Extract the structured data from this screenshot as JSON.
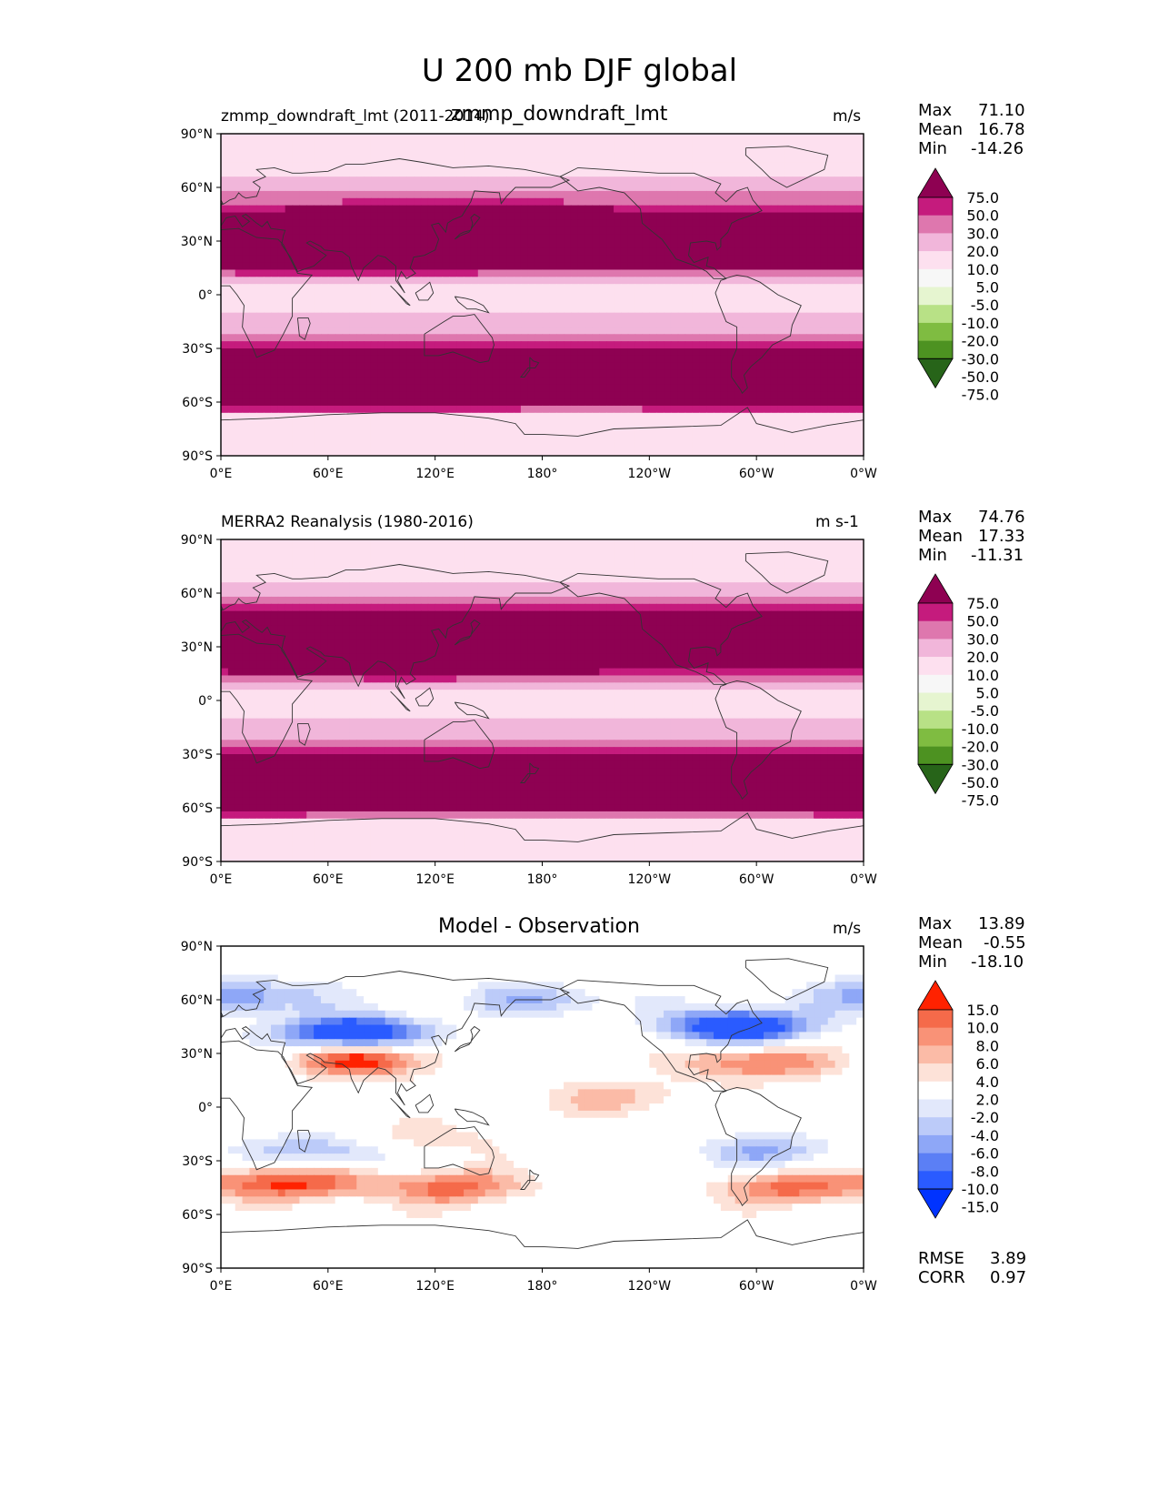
{
  "figure": {
    "title": "U 200 mb DJF global"
  },
  "colors": {
    "field": [
      "#276419",
      "#4d9221",
      "#7fbc41",
      "#b8e186",
      "#e6f5d0",
      "#f7f7f7",
      "#fde0ef",
      "#f1b6da",
      "#de77ae",
      "#c51b7d",
      "#8e0152"
    ],
    "diff": [
      "#0033ff",
      "#2a5bff",
      "#5b7ff5",
      "#8ea7f7",
      "#bccbf9",
      "#e2e8fb",
      "#ffffff",
      "#fde2d8",
      "#fbbba7",
      "#f99277",
      "#f56a4a",
      "#ff2200"
    ],
    "coast": "#333333"
  },
  "chart_data": [
    {
      "type": "heatmap",
      "name": "test",
      "title_left": "zmmp_downdraft_lmt (2011-2014)",
      "title_center": "zmmp_downdraft_lmt",
      "units": "m/s",
      "x_ticks": [
        "0°E",
        "60°E",
        "120°E",
        "180°",
        "120°W",
        "60°W",
        "0°W"
      ],
      "y_ticks": [
        "90°N",
        "60°N",
        "30°N",
        "0°",
        "30°S",
        "60°S",
        "90°S"
      ],
      "stats": {
        "max_label": "Max",
        "max": "71.10",
        "mean_label": "Mean",
        "mean": "16.78",
        "min_label": "Min",
        "min": "-14.26"
      },
      "colorbar_levels": [
        "75.0",
        "50.0",
        "30.0",
        "20.0",
        "10.0",
        "5.0",
        "-5.0",
        "-10.0",
        "-20.0",
        "-30.0",
        "-50.0",
        "-75.0"
      ],
      "jets": [
        [
          33,
          140,
          65,
          0.55
        ],
        [
          30,
          60,
          55,
          0.35
        ],
        [
          30,
          295,
          45,
          0.35
        ],
        [
          -45,
          40,
          50,
          0.3
        ],
        [
          -45,
          300,
          44,
          0.25
        ],
        [
          -45,
          160,
          38,
          0.25
        ]
      ]
    },
    {
      "type": "heatmap",
      "name": "reference",
      "title_left": "MERRA2 Reanalysis (1980-2016)",
      "units": "m s-1",
      "x_ticks": [
        "0°E",
        "60°E",
        "120°E",
        "180°",
        "120°W",
        "60°W",
        "0°W"
      ],
      "y_ticks": [
        "90°N",
        "60°N",
        "30°N",
        "0°",
        "30°S",
        "60°S",
        "90°S"
      ],
      "stats": {
        "max_label": "Max",
        "max": "74.76",
        "mean_label": "Mean",
        "mean": "17.33",
        "min_label": "Min",
        "min": "-11.31"
      },
      "colorbar_levels": [
        "75.0",
        "50.0",
        "30.0",
        "20.0",
        "10.0",
        "5.0",
        "-5.0",
        "-10.0",
        "-20.0",
        "-30.0",
        "-50.0",
        "-75.0"
      ],
      "jets": [
        [
          32,
          140,
          68,
          0.55
        ],
        [
          30,
          60,
          50,
          0.35
        ],
        [
          35,
          290,
          48,
          0.35
        ],
        [
          -45,
          40,
          42,
          0.3
        ],
        [
          -45,
          310,
          40,
          0.3
        ],
        [
          -45,
          160,
          32,
          0.25
        ]
      ]
    },
    {
      "type": "heatmap",
      "name": "difference",
      "title_center": "Model - Observation",
      "units": "m/s",
      "x_ticks": [
        "0°E",
        "60°E",
        "120°E",
        "180°",
        "120°W",
        "60°W",
        "0°W"
      ],
      "y_ticks": [
        "90°N",
        "60°N",
        "30°N",
        "0°",
        "30°S",
        "60°S",
        "90°S"
      ],
      "stats": {
        "max_label": "Max",
        "max": "13.89",
        "mean_label": "Mean",
        "mean": "-0.55",
        "min_label": "Min",
        "min": "-18.10"
      },
      "colorbar_levels": [
        "15.0",
        "10.0",
        "8.0",
        "6.0",
        "4.0",
        "2.0",
        "-2.0",
        "-4.0",
        "-6.0",
        "-8.0",
        "-10.0",
        "-15.0"
      ],
      "metrics": {
        "rmse_label": "RMSE",
        "rmse": "3.89",
        "corr_label": "CORR",
        "corr": "0.97"
      },
      "anomalies": [
        [
          41,
          75,
          -16
        ],
        [
          45,
          290,
          -15
        ],
        [
          27,
          80,
          12
        ],
        [
          25,
          300,
          9
        ],
        [
          -42,
          40,
          11
        ],
        [
          -45,
          130,
          9
        ],
        [
          -45,
          320,
          9
        ],
        [
          -25,
          60,
          -7
        ],
        [
          -25,
          310,
          -6
        ],
        [
          62,
          15,
          -8
        ],
        [
          60,
          180,
          -6
        ],
        [
          5,
          225,
          5
        ],
        [
          -18,
          110,
          4
        ]
      ]
    }
  ]
}
